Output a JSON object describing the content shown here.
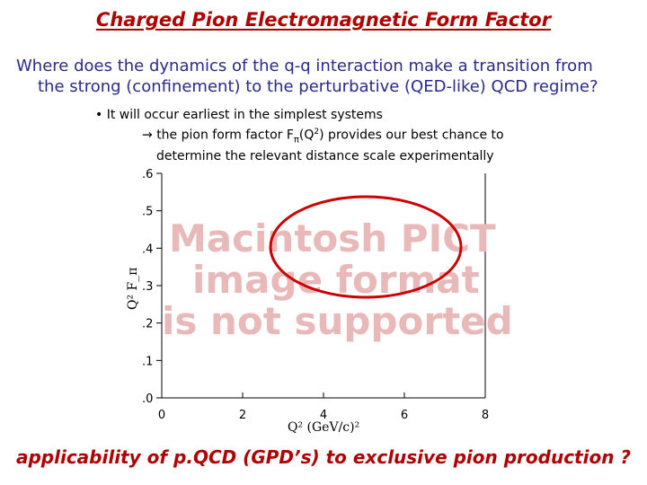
{
  "slide": {
    "title": "Charged Pion Electromagnetic Form Factor",
    "question_line1": "Where does the dynamics of the q-q interaction make a transition from",
    "question_line2": "the strong (confinement) to the perturbative (QED-like) QCD regime?",
    "bullet_marker": "•",
    "bullet": "It will occur earliest in the simplest systems",
    "arrow": "→",
    "sub_prefix": "the pion form factor F",
    "sub_subscript": "π",
    "sub_q": "(Q",
    "sub_sup": "2",
    "sub_rest": ") provides our best chance to",
    "sub_line2": "determine the relevant distance scale experimentally",
    "footer": "applicability of p.QCD (GPD’s) to exclusive pion production ?"
  },
  "placeholder": {
    "line1": "Macintosh PICT",
    "line2": "image format",
    "line3": "is not supported"
  },
  "chart_data": {
    "type": "scatter",
    "xlabel": "Q² (GeV/c)²",
    "ylabel": "Q² F_π",
    "x_ticks": [
      "0",
      "2",
      "4",
      "6",
      "8"
    ],
    "y_ticks": [
      ".0",
      ".1",
      ".2",
      ".3",
      ".4",
      ".5",
      ".6"
    ],
    "xlim": [
      0,
      8
    ],
    "ylim": [
      0,
      0.6
    ],
    "series": []
  },
  "colors": {
    "title": "#b00000",
    "question": "#2a2a8a",
    "highlight_ellipse": "#cc0000",
    "placeholder_text": "#e9b8b8"
  }
}
